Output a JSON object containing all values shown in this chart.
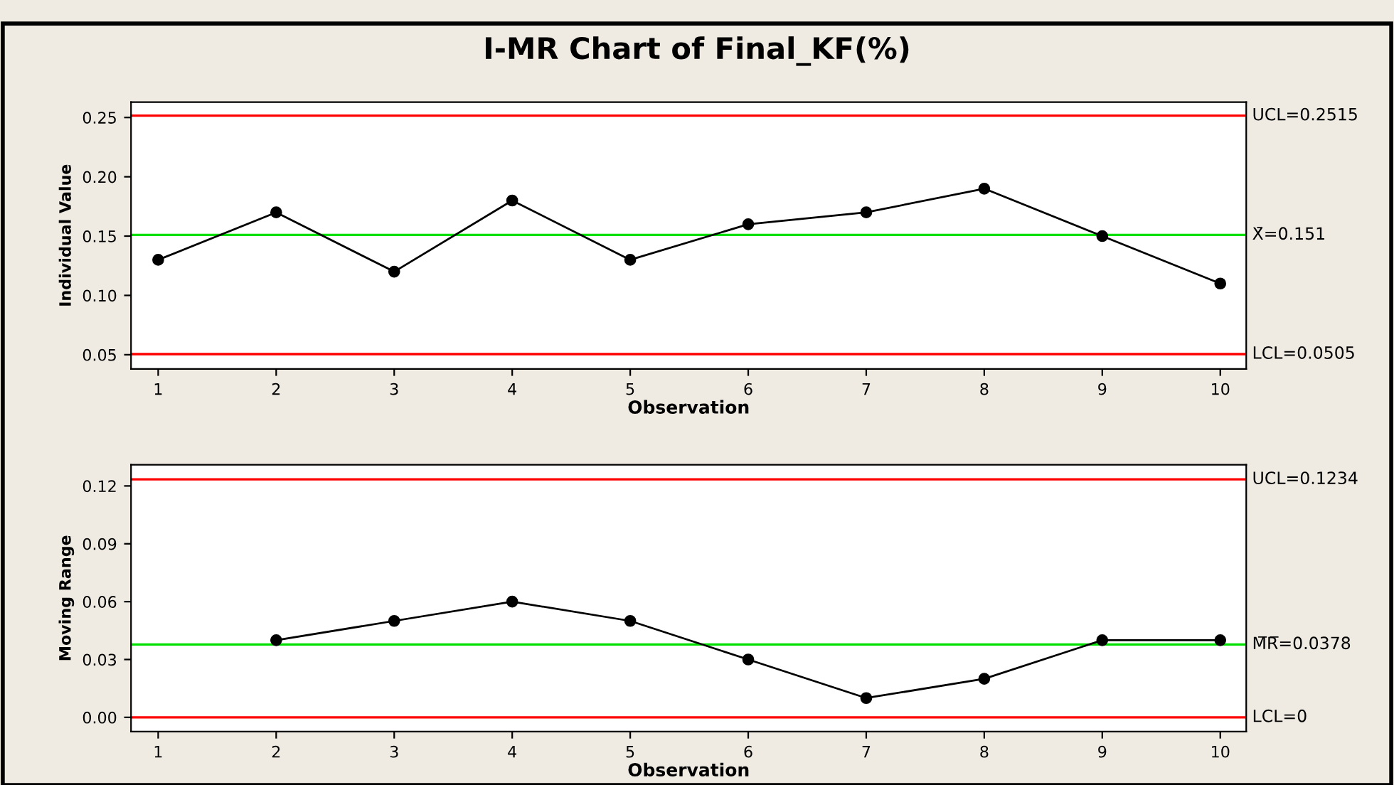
{
  "chart_data": [
    {
      "type": "line",
      "title": "I-MR Chart of Final_KF(%)",
      "xlabel": "Observation",
      "ylabel": "Individual Value",
      "x": [
        1,
        2,
        3,
        4,
        5,
        6,
        7,
        8,
        9,
        10
      ],
      "series": [
        {
          "color": "#000000",
          "values": [
            0.13,
            0.17,
            0.12,
            0.18,
            0.13,
            0.16,
            0.17,
            0.19,
            0.15,
            0.11
          ]
        }
      ],
      "xlim": [
        0.77,
        10.22
      ],
      "xticks": [
        1,
        2,
        3,
        4,
        5,
        6,
        7,
        8,
        9,
        10
      ],
      "ylim": [
        0.038,
        0.263
      ],
      "yticks": [
        {
          "value": 0.05,
          "label": "0.05"
        },
        {
          "value": 0.1,
          "label": "0.10"
        },
        {
          "value": 0.15,
          "label": "0.15"
        },
        {
          "value": 0.2,
          "label": "0.20"
        },
        {
          "value": 0.25,
          "label": "0.25"
        }
      ],
      "ref_lines": [
        {
          "axis": "y",
          "value": 0.2515,
          "label": "UCL=0.2515",
          "color": "#ff0000"
        },
        {
          "axis": "y",
          "value": 0.151,
          "label": "X̄=0.151",
          "color": "#00e000"
        },
        {
          "axis": "y",
          "value": 0.0505,
          "label": "LCL=0.0505",
          "color": "#ff0000"
        }
      ],
      "marker": "circle",
      "line_style": "solid",
      "grid": false,
      "legend": false
    },
    {
      "type": "line",
      "xlabel": "Observation",
      "ylabel": "Moving Range",
      "series": [
        {
          "color": "#000000",
          "x": [
            2,
            3,
            4,
            5,
            6,
            7,
            8,
            9,
            10
          ],
          "values": [
            0.04,
            0.05,
            0.06,
            0.05,
            0.03,
            0.01,
            0.02,
            0.04,
            0.04
          ]
        }
      ],
      "xlim": [
        0.77,
        10.22
      ],
      "xticks": [
        1,
        2,
        3,
        4,
        5,
        6,
        7,
        8,
        9,
        10
      ],
      "ylim": [
        -0.0074,
        0.131
      ],
      "yticks": [
        {
          "value": 0,
          "label": "0.00"
        },
        {
          "value": 0.03,
          "label": "0.03"
        },
        {
          "value": 0.06,
          "label": "0.06"
        },
        {
          "value": 0.09,
          "label": "0.09"
        },
        {
          "value": 0.12,
          "label": "0.12"
        }
      ],
      "ref_lines": [
        {
          "axis": "y",
          "value": 0.1234,
          "label": "UCL=0.1234",
          "color": "#ff0000"
        },
        {
          "axis": "y",
          "value": 0.0378,
          "label": "M̅R̅=0.0378",
          "color": "#00e000"
        },
        {
          "axis": "y",
          "value": 0,
          "label": "LCL=0",
          "color": "#ff0000"
        }
      ],
      "marker": "circle",
      "line_style": "solid",
      "grid": false,
      "legend": false
    }
  ]
}
